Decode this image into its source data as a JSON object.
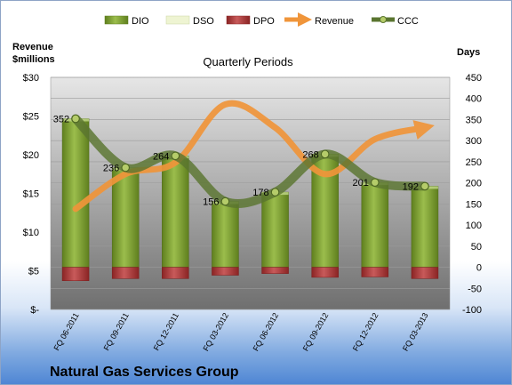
{
  "chart_data": {
    "type": "bar",
    "title": "Quarterly Periods",
    "company": "Natural Gas Services Group",
    "left_axis": {
      "title_line1": "Revenue",
      "title_line2": "$millions",
      "ylim": [
        0,
        30
      ],
      "ticks": [
        "$-",
        "$5",
        "$10",
        "$15",
        "$20",
        "$25",
        "$30"
      ]
    },
    "right_axis": {
      "title": "Days",
      "ylim": [
        -100,
        450
      ],
      "ticks": [
        "-100",
        "-50",
        "0",
        "50",
        "100",
        "150",
        "200",
        "250",
        "300",
        "350",
        "400",
        "450"
      ]
    },
    "categories": [
      "FQ 06-2011",
      "FQ 09-2011",
      "FQ 12-2011",
      "FQ 03-2012",
      "FQ 06-2012",
      "FQ 09-2012",
      "FQ 12-2012",
      "FQ 03-2013"
    ],
    "series": [
      {
        "name": "DIO",
        "axis": "right",
        "kind": "stacked-bar",
        "color": "#7a9a2e",
        "values": [
          352,
          236,
          264,
          156,
          178,
          268,
          201,
          192
        ]
      },
      {
        "name": "DSO",
        "axis": "right",
        "kind": "stacked-bar",
        "color": "#e8f0c8",
        "values": [
          0,
          0,
          0,
          0,
          0,
          0,
          0,
          0
        ]
      },
      {
        "name": "DPO",
        "axis": "right",
        "kind": "stacked-bar",
        "color": "#b03a3a",
        "values": [
          -32,
          -27,
          -27,
          -19,
          -15,
          -24,
          -23,
          -27
        ]
      },
      {
        "name": "Revenue",
        "axis": "left",
        "kind": "line",
        "color": "#f0953a",
        "values": [
          13.0,
          17.5,
          19.0,
          26.5,
          23.5,
          17.5,
          22.0,
          23.5
        ]
      },
      {
        "name": "CCC",
        "axis": "right",
        "kind": "line",
        "color": "#5a7530",
        "values": [
          352,
          236,
          264,
          156,
          178,
          268,
          201,
          192
        ]
      }
    ],
    "data_labels": [
      "352",
      "236",
      "264",
      "156",
      "178",
      "268",
      "201",
      "192"
    ],
    "grid": true,
    "legend": "top"
  }
}
